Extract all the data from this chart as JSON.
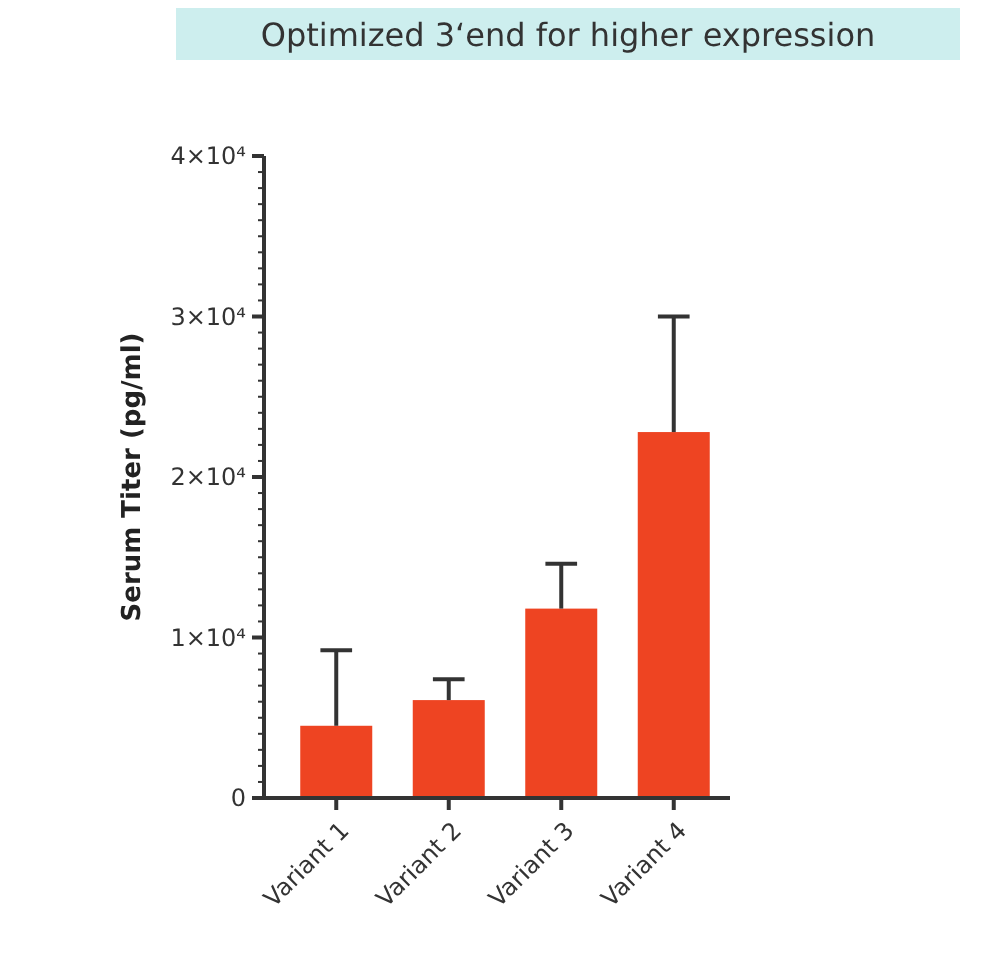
{
  "chart_data": {
    "type": "bar",
    "title": "Optimized 3‘end for higher expression",
    "ylabel": "Serum Titer (pg/ml)",
    "categories": [
      "Variant 1",
      "Variant 2",
      "Variant 3",
      "Variant 4"
    ],
    "values": [
      4500,
      6100,
      11800,
      22800
    ],
    "errors": [
      [
        4500,
        9200
      ],
      [
        6100,
        7400
      ],
      [
        11800,
        14600
      ],
      [
        22800,
        30000
      ]
    ],
    "color": "#ee4422",
    "ylim": [
      0,
      40000
    ],
    "yticks": [
      {
        "value": 0,
        "label": "0"
      },
      {
        "value": 10000,
        "label": "1×10⁴"
      },
      {
        "value": 20000,
        "label": "2×10⁴"
      },
      {
        "value": 30000,
        "label": "3×10⁴"
      },
      {
        "value": 40000,
        "label": "4×10⁴"
      }
    ],
    "grid": false
  }
}
